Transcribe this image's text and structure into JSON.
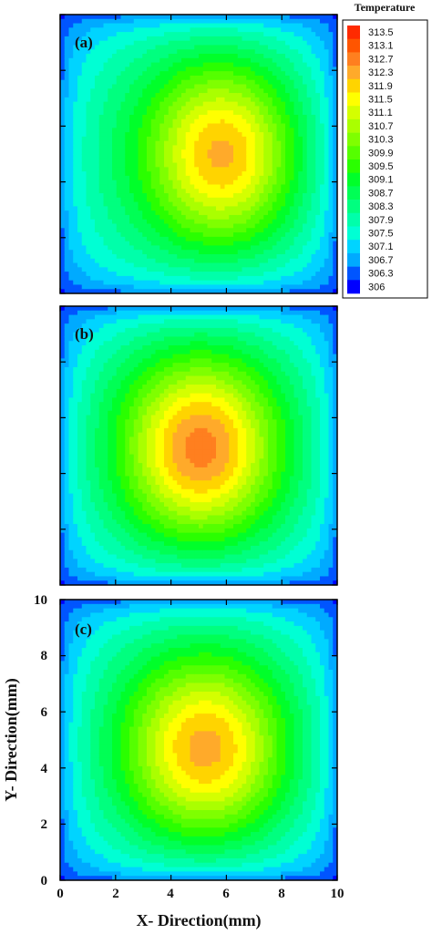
{
  "chart_data": {
    "type": "heatmap",
    "subtype": "filled-contour",
    "legend": {
      "title": "Temperature",
      "placement": "top-right",
      "levels": [
        "313.5",
        "313.1",
        "312.7",
        "312.3",
        "311.9",
        "311.5",
        "311.1",
        "310.7",
        "310.3",
        "309.9",
        "309.5",
        "309.1",
        "308.7",
        "308.3",
        "307.9",
        "307.5",
        "307.1",
        "306.7",
        "306.3",
        "306"
      ],
      "colors": [
        "#ff2a00",
        "#ff5500",
        "#ff7f1f",
        "#ffaa2a",
        "#ffd400",
        "#ffff00",
        "#d4ff00",
        "#aaff00",
        "#7fff00",
        "#55ff00",
        "#2aff00",
        "#00ff2a",
        "#00ff55",
        "#00ff7f",
        "#00ffaa",
        "#00ffd4",
        "#00d4ff",
        "#00aaff",
        "#0055ff",
        "#0000ff"
      ]
    },
    "xlabel": "X- Direction(mm)",
    "ylabel": "Y- Direction(mm)",
    "xlim": [
      0,
      10
    ],
    "ylim": [
      0,
      10
    ],
    "x_ticks": [
      "0",
      "2",
      "4",
      "6",
      "8",
      "10"
    ],
    "y_ticks": [
      "0",
      "2",
      "4",
      "6",
      "8",
      "10"
    ],
    "panels": [
      {
        "label": "(a)",
        "peak_x": 6.0,
        "peak_y": 5.0,
        "peak_T": 312.5,
        "spread_x": 3.5,
        "spread_y": 4.5
      },
      {
        "label": "(b)",
        "peak_x": 5.1,
        "peak_y": 4.9,
        "peak_T": 312.9,
        "spread_x": 3.6,
        "spread_y": 4.4
      },
      {
        "label": "(c)",
        "peak_x": 5.3,
        "peak_y": 4.6,
        "peak_T": 312.5,
        "spread_x": 3.8,
        "spread_y": 4.4
      }
    ]
  }
}
